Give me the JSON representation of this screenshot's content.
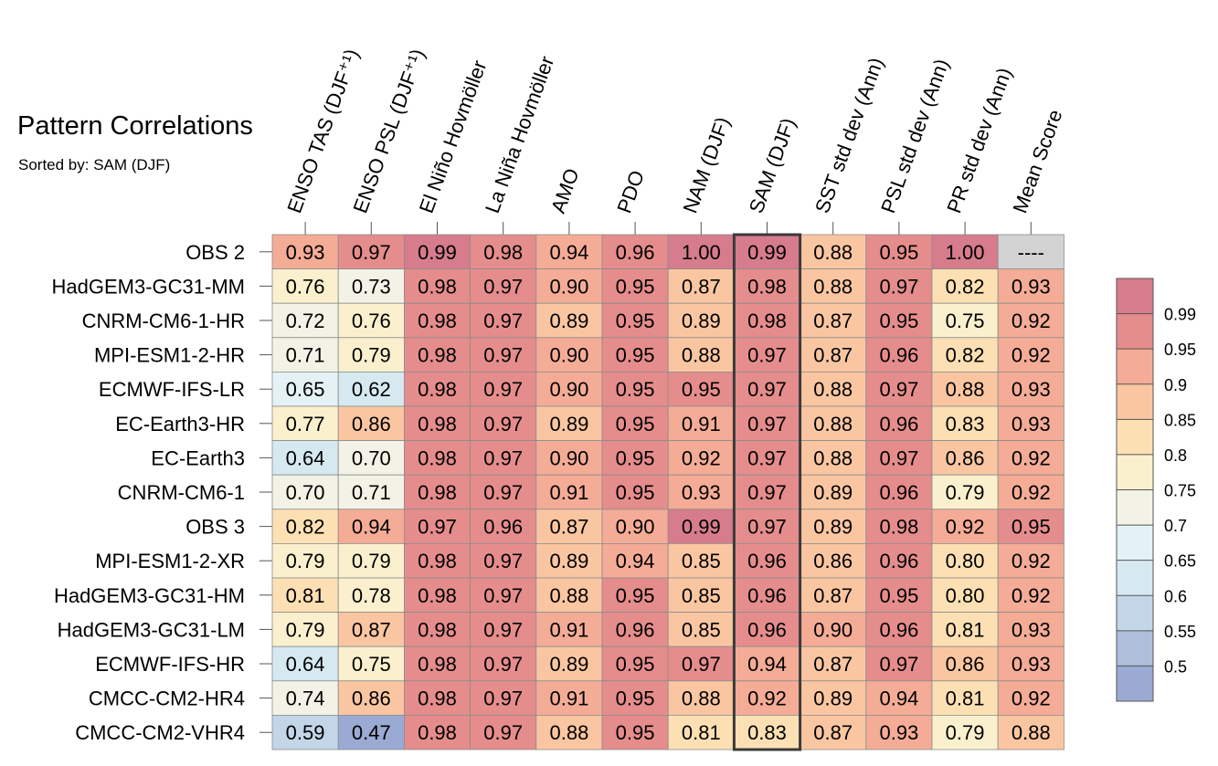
{
  "title": "Pattern Correlations",
  "subtitle": "Sorted by: SAM (DJF)",
  "chart_data": {
    "type": "heatmap",
    "columns": [
      "ENSO TAS (DJF⁺¹)",
      "ENSO PSL (DJF⁺¹)",
      "El Niño Hovmöller",
      "La Niña Hovmöller",
      "AMO",
      "PDO",
      "NAM (DJF)",
      "SAM (DJF)",
      "SST std dev (Ann)",
      "PSL std dev (Ann)",
      "PR std dev (Ann)",
      "Mean Score"
    ],
    "rows": [
      "OBS 2",
      "HadGEM3-GC31-MM",
      "CNRM-CM6-1-HR",
      "MPI-ESM1-2-HR",
      "ECMWF-IFS-LR",
      "EC-Earth3-HR",
      "EC-Earth3",
      "CNRM-CM6-1",
      "OBS 3",
      "MPI-ESM1-2-XR",
      "HadGEM3-GC31-HM",
      "HadGEM3-GC31-LM",
      "ECMWF-IFS-HR",
      "CMCC-CM2-HR4",
      "CMCC-CM2-VHR4"
    ],
    "values": [
      [
        0.93,
        0.97,
        0.99,
        0.98,
        0.94,
        0.96,
        1.0,
        0.99,
        0.88,
        0.95,
        1.0,
        null
      ],
      [
        0.76,
        0.73,
        0.98,
        0.97,
        0.9,
        0.95,
        0.87,
        0.98,
        0.88,
        0.97,
        0.82,
        0.93
      ],
      [
        0.72,
        0.76,
        0.98,
        0.97,
        0.89,
        0.95,
        0.89,
        0.98,
        0.87,
        0.95,
        0.75,
        0.92
      ],
      [
        0.71,
        0.79,
        0.98,
        0.97,
        0.9,
        0.95,
        0.88,
        0.97,
        0.87,
        0.96,
        0.82,
        0.92
      ],
      [
        0.65,
        0.62,
        0.98,
        0.97,
        0.9,
        0.95,
        0.95,
        0.97,
        0.88,
        0.97,
        0.88,
        0.93
      ],
      [
        0.77,
        0.86,
        0.98,
        0.97,
        0.89,
        0.95,
        0.91,
        0.97,
        0.88,
        0.96,
        0.83,
        0.93
      ],
      [
        0.64,
        0.7,
        0.98,
        0.97,
        0.9,
        0.95,
        0.92,
        0.97,
        0.88,
        0.97,
        0.86,
        0.92
      ],
      [
        0.7,
        0.71,
        0.98,
        0.97,
        0.91,
        0.95,
        0.93,
        0.97,
        0.89,
        0.96,
        0.79,
        0.92
      ],
      [
        0.82,
        0.94,
        0.97,
        0.96,
        0.87,
        0.9,
        0.99,
        0.97,
        0.89,
        0.98,
        0.92,
        0.95
      ],
      [
        0.79,
        0.79,
        0.98,
        0.97,
        0.89,
        0.94,
        0.85,
        0.96,
        0.86,
        0.96,
        0.8,
        0.92
      ],
      [
        0.81,
        0.78,
        0.98,
        0.97,
        0.88,
        0.95,
        0.85,
        0.96,
        0.87,
        0.95,
        0.8,
        0.92
      ],
      [
        0.79,
        0.87,
        0.98,
        0.97,
        0.91,
        0.96,
        0.85,
        0.96,
        0.9,
        0.96,
        0.81,
        0.93
      ],
      [
        0.64,
        0.75,
        0.98,
        0.97,
        0.89,
        0.95,
        0.97,
        0.94,
        0.87,
        0.97,
        0.86,
        0.93
      ],
      [
        0.74,
        0.86,
        0.98,
        0.97,
        0.91,
        0.95,
        0.88,
        0.92,
        0.89,
        0.94,
        0.81,
        0.92
      ],
      [
        0.59,
        0.47,
        0.98,
        0.97,
        0.88,
        0.95,
        0.81,
        0.83,
        0.87,
        0.93,
        0.79,
        0.88
      ]
    ],
    "missing_label": "----",
    "highlight_column": "SAM (DJF)",
    "colorbar": {
      "labels": [
        "0.99",
        "0.95",
        "0.9",
        "0.85",
        "0.8",
        "0.75",
        "0.7",
        "0.65",
        "0.6",
        "0.55",
        "0.5"
      ],
      "levels": [
        0.5,
        0.55,
        0.6,
        0.65,
        0.7,
        0.75,
        0.8,
        0.85,
        0.9,
        0.95,
        0.99
      ],
      "colors": [
        "#9aaad2",
        "#aebfdc",
        "#c3d6e7",
        "#d6e9f1",
        "#e5f2f5",
        "#f3f2e6",
        "#fbf0cd",
        "#fce0b4",
        "#fac6a2",
        "#f4ac96",
        "#e58d8c",
        "#d67c8c"
      ],
      "missing_color": "#d3d3d3"
    }
  }
}
